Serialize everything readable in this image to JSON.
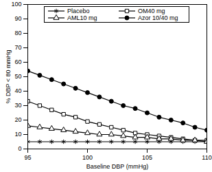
{
  "chart_data": {
    "type": "line",
    "x_label": "Baseline DBP (mmHg)",
    "y_label": "% DBP < 80 mmHg",
    "x": [
      95,
      96,
      97,
      98,
      99,
      100,
      101,
      102,
      103,
      104,
      105,
      106,
      107,
      108,
      109,
      110
    ],
    "series": [
      {
        "name": "Placebo",
        "color": "#000000",
        "marker": "asterisk",
        "values": [
          5,
          5,
          5,
          5,
          5,
          5,
          5,
          5,
          5,
          5,
          5,
          5,
          5,
          5,
          5,
          5
        ]
      },
      {
        "name": "OM40 mg",
        "color": "#000000",
        "marker": "square-open",
        "values": [
          33,
          30,
          27,
          24,
          22,
          19,
          17,
          15,
          13,
          11,
          10,
          9,
          8,
          7,
          6,
          6
        ]
      },
      {
        "name": "AML10 mg",
        "color": "#000000",
        "marker": "triangle-open",
        "values": [
          16,
          15,
          14,
          13,
          12,
          11,
          10,
          10,
          9,
          8,
          8,
          7,
          7,
          6,
          6,
          5
        ]
      },
      {
        "name": "Azor 10/40 mg",
        "color": "#000000",
        "marker": "circle-filled",
        "values": [
          54,
          51,
          48,
          45,
          42,
          39,
          36,
          33,
          30,
          28,
          25,
          22,
          20,
          18,
          15,
          13
        ]
      }
    ],
    "xlim": [
      95,
      110
    ],
    "xticks": [
      95,
      100,
      105,
      110
    ],
    "ylim": [
      0,
      100
    ],
    "yticks": [
      0,
      10,
      20,
      30,
      40,
      50,
      60,
      70,
      80,
      90,
      100
    ],
    "grid": false,
    "legend": "top"
  }
}
